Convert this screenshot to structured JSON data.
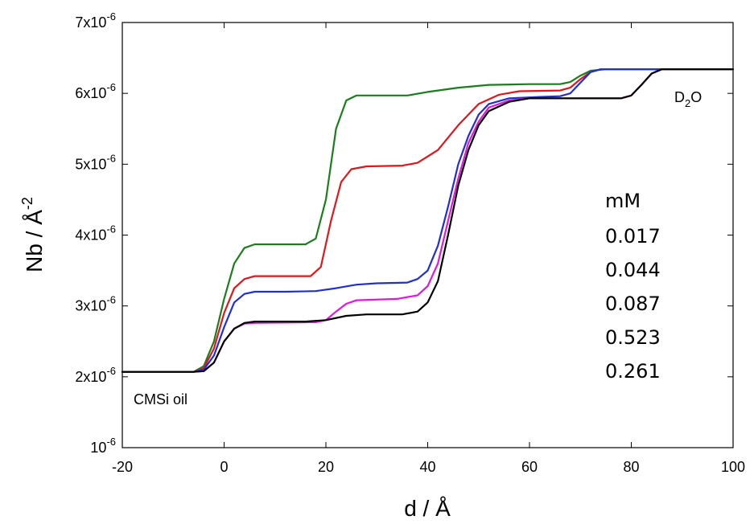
{
  "chart_data": {
    "type": "line",
    "xlabel": "d / Å",
    "ylabel_main": "Nb / Å",
    "ylabel_sup": "-2",
    "xlim": [
      -20,
      100
    ],
    "ylim": [
      1e-06,
      7e-06
    ],
    "x_ticks": [
      "-20",
      "0",
      "20",
      "40",
      "60",
      "80",
      "100"
    ],
    "x_tick_values": [
      -20,
      0,
      20,
      40,
      60,
      80,
      100
    ],
    "y_tick_values": [
      1e-06,
      2e-06,
      3e-06,
      4e-06,
      5e-06,
      6e-06,
      7e-06
    ],
    "y_ticks": [
      {
        "base": "10",
        "sup": "-6"
      },
      {
        "base": "2x10",
        "sup": "-6"
      },
      {
        "base": "3x10",
        "sup": "-6"
      },
      {
        "base": "4x10",
        "sup": "-6"
      },
      {
        "base": "5x10",
        "sup": "-6"
      },
      {
        "base": "6x10",
        "sup": "-6"
      },
      {
        "base": "7x10",
        "sup": "-6"
      }
    ],
    "grid": false,
    "legend_title": "mM",
    "legend_items": [
      "0.017",
      "0.044",
      "0.087",
      "0.523",
      "0.261"
    ],
    "annotations": {
      "oil": "CMSi oil",
      "water_base": "D",
      "water_sub": "2",
      "water_tail": "O"
    },
    "series": [
      {
        "color": "#1a7f1a",
        "values_e6": [
          [
            -20,
            2.07
          ],
          [
            -6,
            2.07
          ],
          [
            -4,
            2.15
          ],
          [
            -2,
            2.5
          ],
          [
            0,
            3.1
          ],
          [
            2,
            3.6
          ],
          [
            4,
            3.82
          ],
          [
            6,
            3.87
          ],
          [
            10,
            3.87
          ],
          [
            16,
            3.87
          ],
          [
            18,
            3.95
          ],
          [
            20,
            4.5
          ],
          [
            22,
            5.5
          ],
          [
            24,
            5.9
          ],
          [
            26,
            5.97
          ],
          [
            30,
            5.97
          ],
          [
            36,
            5.97
          ],
          [
            40,
            6.02
          ],
          [
            46,
            6.08
          ],
          [
            52,
            6.12
          ],
          [
            60,
            6.13
          ],
          [
            66,
            6.13
          ],
          [
            68,
            6.16
          ],
          [
            70,
            6.25
          ],
          [
            72,
            6.32
          ],
          [
            75,
            6.34
          ],
          [
            100,
            6.34
          ]
        ]
      },
      {
        "color": "#e0161a",
        "values_e6": [
          [
            -20,
            2.07
          ],
          [
            -6,
            2.07
          ],
          [
            -4,
            2.12
          ],
          [
            -2,
            2.4
          ],
          [
            0,
            2.9
          ],
          [
            2,
            3.25
          ],
          [
            4,
            3.38
          ],
          [
            6,
            3.42
          ],
          [
            10,
            3.42
          ],
          [
            17,
            3.42
          ],
          [
            19,
            3.55
          ],
          [
            21,
            4.2
          ],
          [
            23,
            4.75
          ],
          [
            25,
            4.93
          ],
          [
            28,
            4.97
          ],
          [
            35,
            4.98
          ],
          [
            38,
            5.02
          ],
          [
            42,
            5.2
          ],
          [
            46,
            5.55
          ],
          [
            50,
            5.85
          ],
          [
            54,
            5.98
          ],
          [
            58,
            6.03
          ],
          [
            66,
            6.04
          ],
          [
            68,
            6.08
          ],
          [
            70,
            6.2
          ],
          [
            72,
            6.3
          ],
          [
            74,
            6.34
          ],
          [
            100,
            6.34
          ]
        ]
      },
      {
        "color": "#1f2fd8",
        "values_e6": [
          [
            -20,
            2.07
          ],
          [
            -6,
            2.07
          ],
          [
            -4,
            2.1
          ],
          [
            -2,
            2.3
          ],
          [
            0,
            2.7
          ],
          [
            2,
            3.05
          ],
          [
            4,
            3.17
          ],
          [
            6,
            3.2
          ],
          [
            12,
            3.2
          ],
          [
            18,
            3.21
          ],
          [
            22,
            3.25
          ],
          [
            26,
            3.3
          ],
          [
            30,
            3.32
          ],
          [
            36,
            3.33
          ],
          [
            38,
            3.38
          ],
          [
            40,
            3.5
          ],
          [
            42,
            3.85
          ],
          [
            44,
            4.4
          ],
          [
            46,
            5.0
          ],
          [
            48,
            5.4
          ],
          [
            50,
            5.7
          ],
          [
            52,
            5.85
          ],
          [
            56,
            5.93
          ],
          [
            62,
            5.95
          ],
          [
            66,
            5.96
          ],
          [
            68,
            6.0
          ],
          [
            70,
            6.15
          ],
          [
            72,
            6.3
          ],
          [
            74,
            6.34
          ],
          [
            100,
            6.34
          ]
        ]
      },
      {
        "color": "#e414e4",
        "values_e6": [
          [
            -20,
            2.07
          ],
          [
            -6,
            2.07
          ],
          [
            -4,
            2.08
          ],
          [
            -2,
            2.2
          ],
          [
            0,
            2.5
          ],
          [
            2,
            2.68
          ],
          [
            4,
            2.75
          ],
          [
            6,
            2.76
          ],
          [
            18,
            2.77
          ],
          [
            20,
            2.8
          ],
          [
            22,
            2.92
          ],
          [
            24,
            3.03
          ],
          [
            26,
            3.08
          ],
          [
            34,
            3.1
          ],
          [
            38,
            3.15
          ],
          [
            40,
            3.28
          ],
          [
            42,
            3.6
          ],
          [
            44,
            4.2
          ],
          [
            46,
            4.8
          ],
          [
            48,
            5.3
          ],
          [
            50,
            5.6
          ],
          [
            52,
            5.8
          ],
          [
            56,
            5.9
          ],
          [
            60,
            5.93
          ],
          [
            78,
            5.93
          ],
          [
            80,
            5.97
          ],
          [
            82,
            6.12
          ],
          [
            84,
            6.28
          ],
          [
            86,
            6.34
          ],
          [
            100,
            6.34
          ]
        ]
      },
      {
        "color": "#000000",
        "values_e6": [
          [
            -20,
            2.07
          ],
          [
            -6,
            2.07
          ],
          [
            -4,
            2.08
          ],
          [
            -2,
            2.2
          ],
          [
            0,
            2.5
          ],
          [
            2,
            2.68
          ],
          [
            4,
            2.76
          ],
          [
            6,
            2.78
          ],
          [
            16,
            2.78
          ],
          [
            20,
            2.8
          ],
          [
            24,
            2.86
          ],
          [
            28,
            2.88
          ],
          [
            35,
            2.88
          ],
          [
            38,
            2.92
          ],
          [
            40,
            3.05
          ],
          [
            42,
            3.35
          ],
          [
            44,
            4.0
          ],
          [
            46,
            4.7
          ],
          [
            48,
            5.2
          ],
          [
            50,
            5.55
          ],
          [
            52,
            5.75
          ],
          [
            56,
            5.88
          ],
          [
            60,
            5.93
          ],
          [
            78,
            5.93
          ],
          [
            80,
            5.97
          ],
          [
            82,
            6.12
          ],
          [
            84,
            6.28
          ],
          [
            86,
            6.34
          ],
          [
            100,
            6.34
          ]
        ]
      }
    ]
  }
}
